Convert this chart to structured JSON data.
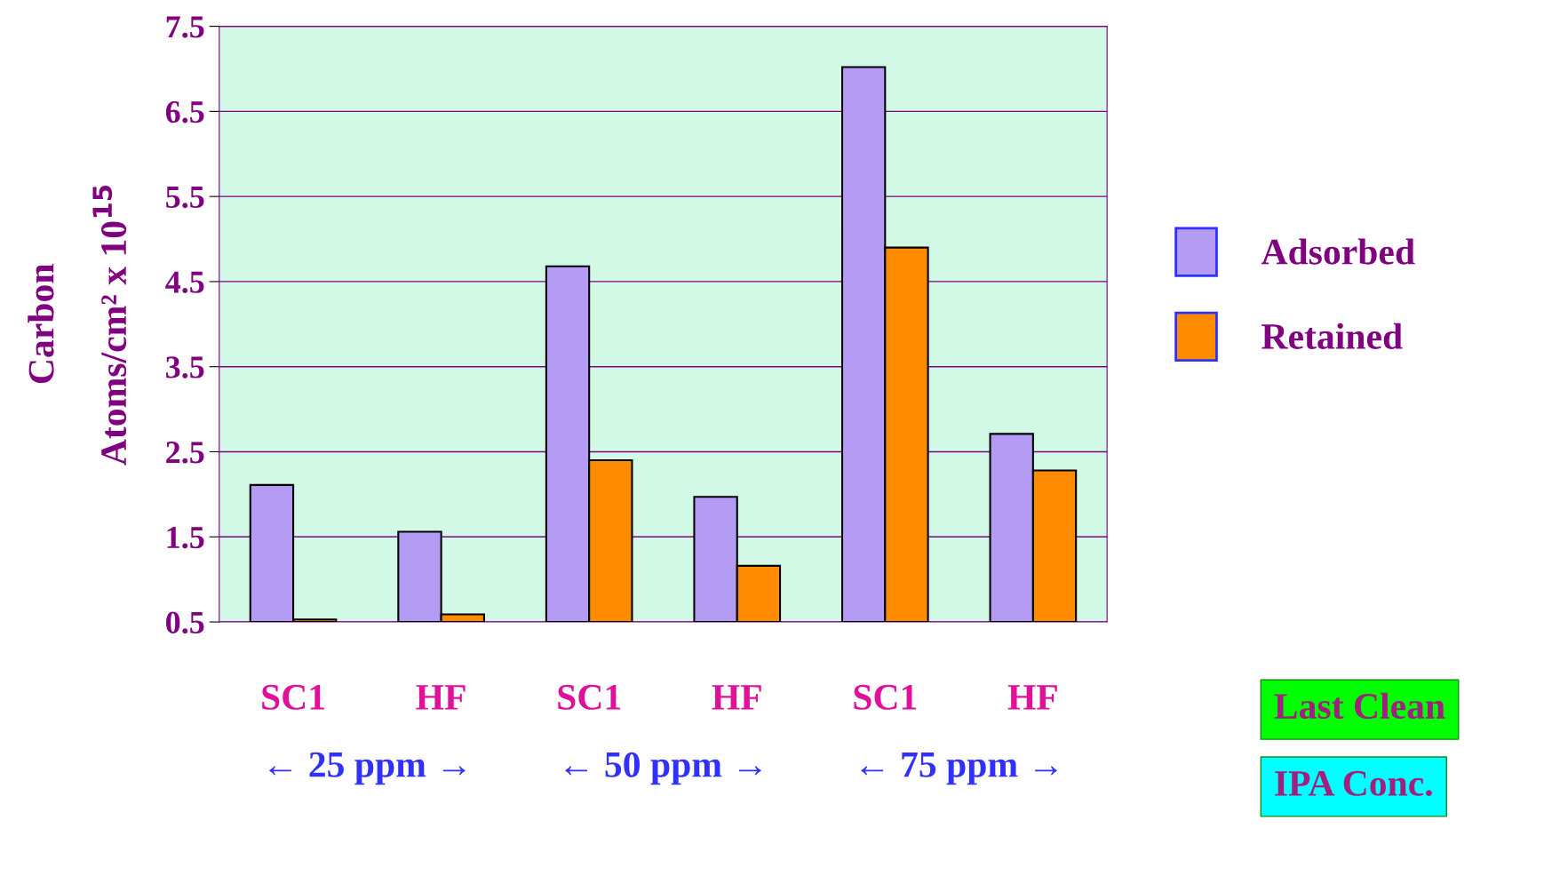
{
  "chart_data": {
    "type": "bar",
    "ylabel": "Carbon\nAtoms/cm² x 10$^{15}$",
    "categories": [
      "SC1",
      "HF",
      "SC1",
      "HF",
      "SC1",
      "HF"
    ],
    "series": [
      {
        "name": "Adsorbed",
        "color": "#b49cf4",
        "values": [
          2.11,
          1.56,
          4.68,
          1.97,
          7.02,
          2.71
        ]
      },
      {
        "name": "Retained",
        "color": "#ff8c00",
        "values": [
          0.53,
          0.59,
          2.4,
          1.16,
          4.9,
          2.28
        ]
      }
    ],
    "ylim": [
      0.5,
      7.5
    ],
    "yticks": [
      0.5,
      1.5,
      2.5,
      3.5,
      4.5,
      5.5,
      6.5,
      7.5
    ],
    "grid": "y",
    "legend": "right",
    "annotations": [
      "← 25 ppm →",
      "← 50 ppm →",
      "← 75 ppm →",
      "Last Clean",
      "IPA Conc."
    ]
  }
}
